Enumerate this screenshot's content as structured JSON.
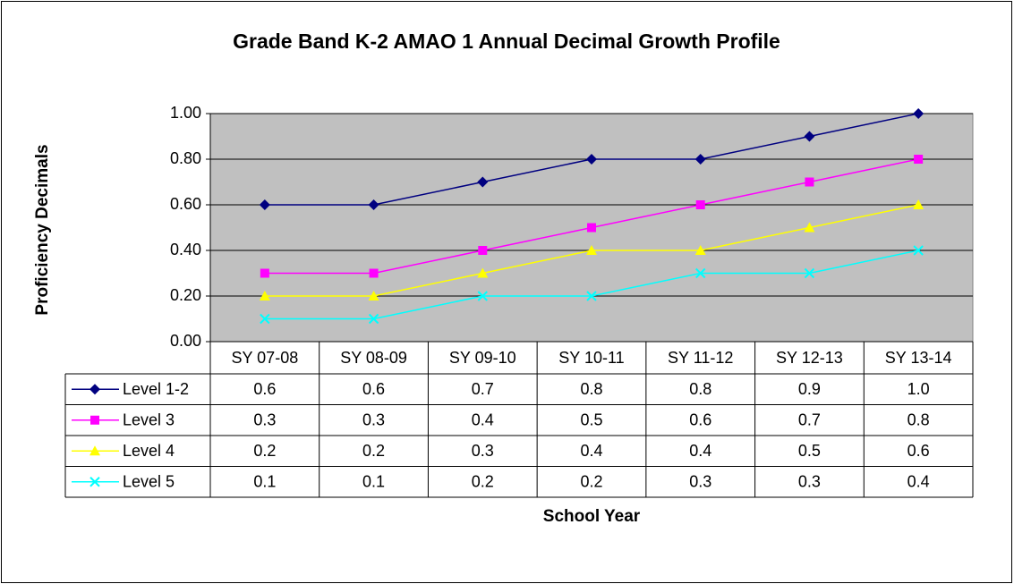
{
  "chart_data": {
    "type": "line",
    "title": "Grade Band K-2 AMAO 1 Annual Decimal Growth Profile",
    "y_label": "Proficiency Decimals",
    "x_label": "School Year",
    "categories": [
      "SY 07-08",
      "SY 08-09",
      "SY 09-10",
      "SY 10-11",
      "SY 11-12",
      "SY 12-13",
      "SY 13-14"
    ],
    "series": [
      {
        "name": "Level 1-2",
        "color": "#000080",
        "marker": "diamond",
        "values": [
          0.6,
          0.6,
          0.7,
          0.8,
          0.8,
          0.9,
          1.0
        ],
        "value_labels": [
          "0.6",
          "0.6",
          "0.7",
          "0.8",
          "0.8",
          "0.9",
          "1.0"
        ]
      },
      {
        "name": "Level 3",
        "color": "#ff00ff",
        "marker": "square",
        "values": [
          0.3,
          0.3,
          0.4,
          0.5,
          0.6,
          0.7,
          0.8
        ],
        "value_labels": [
          "0.3",
          "0.3",
          "0.4",
          "0.5",
          "0.6",
          "0.7",
          "0.8"
        ]
      },
      {
        "name": "Level 4",
        "color": "#ffff00",
        "marker": "triangle",
        "values": [
          0.2,
          0.2,
          0.3,
          0.4,
          0.4,
          0.5,
          0.6
        ],
        "value_labels": [
          "0.2",
          "0.2",
          "0.3",
          "0.4",
          "0.4",
          "0.5",
          "0.6"
        ]
      },
      {
        "name": "Level 5",
        "color": "#00ffff",
        "marker": "x",
        "values": [
          0.1,
          0.1,
          0.2,
          0.2,
          0.3,
          0.3,
          0.4
        ],
        "value_labels": [
          "0.1",
          "0.1",
          "0.2",
          "0.2",
          "0.3",
          "0.3",
          "0.4"
        ]
      }
    ],
    "ylim": [
      0,
      1
    ],
    "yticks": [
      {
        "value": 0,
        "label": "0.00"
      },
      {
        "value": 0.2,
        "label": "0.20"
      },
      {
        "value": 0.4,
        "label": "0.40"
      },
      {
        "value": 0.6,
        "label": "0.60"
      },
      {
        "value": 0.8,
        "label": "0.80"
      },
      {
        "value": 1,
        "label": "1.00"
      }
    ],
    "grid": true,
    "plot_background": "#c0c0c0"
  }
}
